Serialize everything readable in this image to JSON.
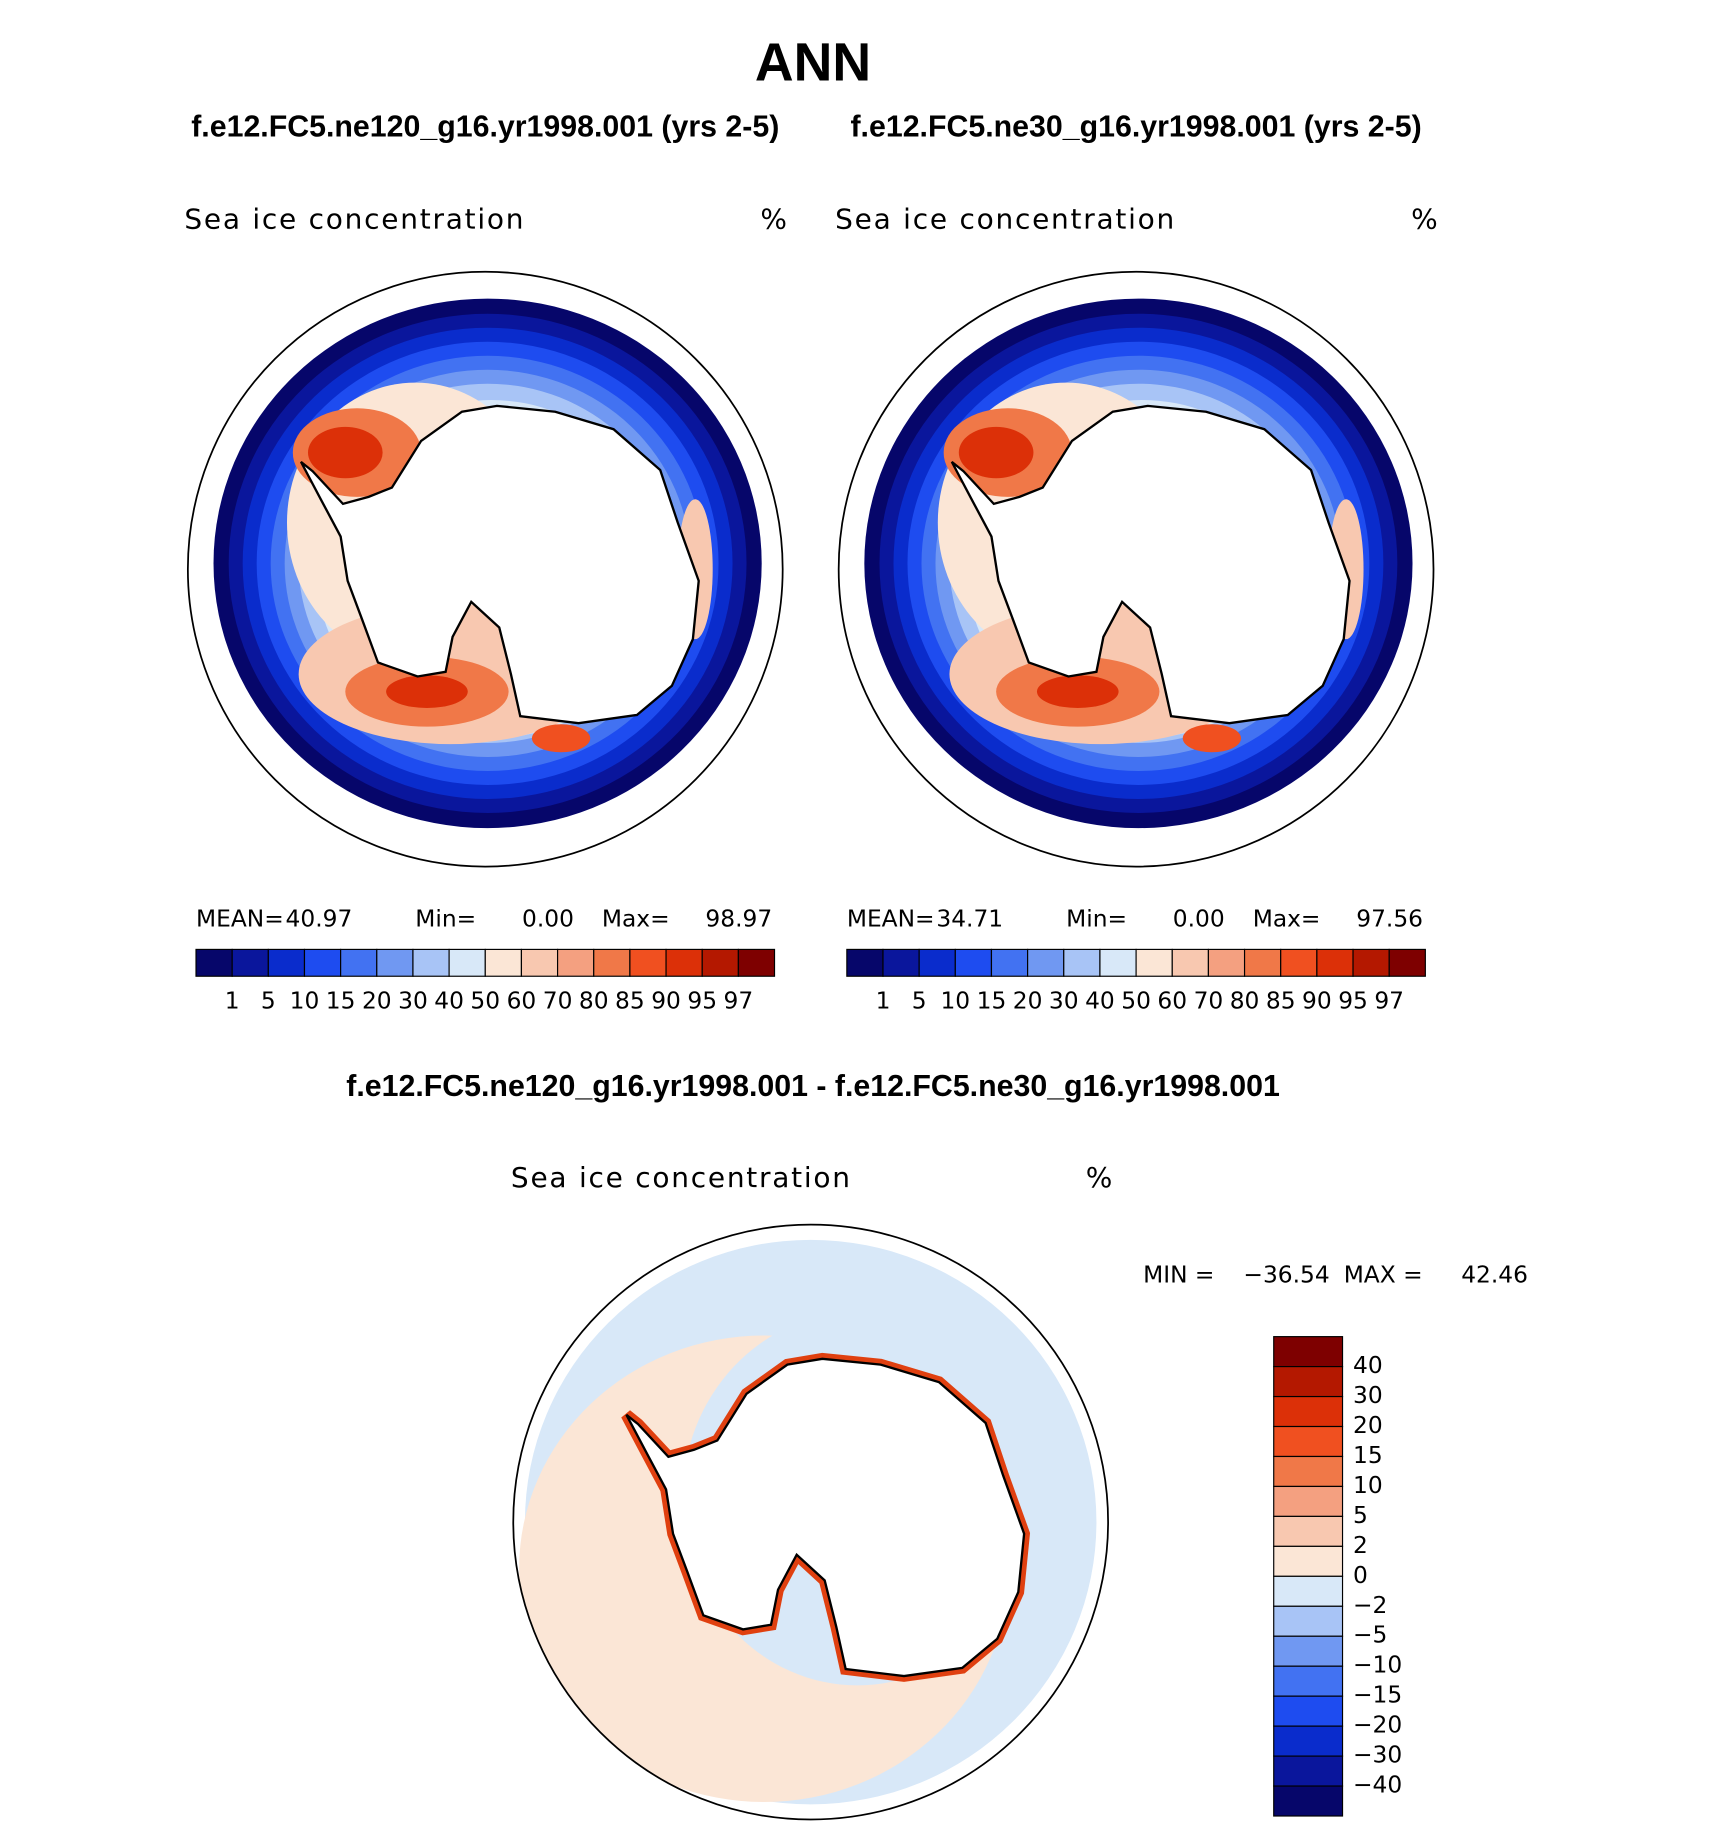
{
  "title": "ANN",
  "subtitles": [
    "f.e12.FC5.ne120_g16.yr1998.001 (yrs 2-5)",
    "f.e12.FC5.ne30_g16.yr1998.001 (yrs 2-5)"
  ],
  "panels": [
    {
      "label": "Sea ice concentration",
      "units": "%",
      "stats": [
        "MEAN=",
        "40.97",
        "Min=",
        "0.00",
        "Max=",
        "98.97"
      ]
    },
    {
      "label": "Sea ice concentration",
      "units": "%",
      "stats": [
        "MEAN=",
        "34.71",
        "Min=",
        "0.00",
        "Max=",
        "97.56"
      ]
    }
  ],
  "colorbar": {
    "colors": [
      "#06066a",
      "#0a169c",
      "#0a2ccc",
      "#1e4cf0",
      "#4272f2",
      "#7098f2",
      "#a8c4f6",
      "#d8e8f8",
      "#fbe6d6",
      "#f8c8b0",
      "#f4a080",
      "#f07848",
      "#f05020",
      "#dc3008",
      "#b41800",
      "#7e0000"
    ],
    "labels": [
      "1",
      "5",
      "10",
      "15",
      "20",
      "30",
      "40",
      "50",
      "60",
      "70",
      "80",
      "85",
      "90",
      "95",
      "97"
    ]
  },
  "difference": {
    "title": "f.e12.FC5.ne120_g16.yr1998.001 - f.e12.FC5.ne30_g16.yr1998.001",
    "label": "Sea ice concentration",
    "units": "%",
    "stats": [
      "MIN =",
      "−36.54",
      "MAX =",
      "42.46"
    ],
    "colorbar": {
      "colors": [
        "#7e0000",
        "#b41800",
        "#dc3008",
        "#f05020",
        "#f07848",
        "#f4a080",
        "#f8c8b0",
        "#fbe6d6",
        "#d8e8f8",
        "#a8c4f6",
        "#7098f2",
        "#4272f2",
        "#1e4cf0",
        "#0a2ccc",
        "#0a169c",
        "#06066a"
      ],
      "labels": [
        "40",
        "30",
        "20",
        "15",
        "10",
        "5",
        "2",
        "0",
        "−2",
        "−5",
        "−10",
        "−15",
        "−20",
        "−30",
        "−40"
      ]
    }
  }
}
